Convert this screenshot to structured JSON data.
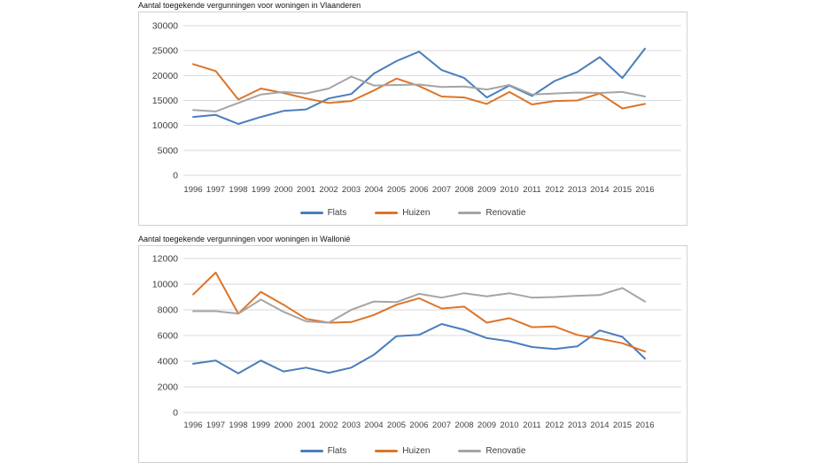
{
  "chart_data": [
    {
      "type": "line",
      "title": "Aantal toegekende vergunningen voor woningen in Vlaanderen",
      "x": [
        1996,
        1997,
        1998,
        1999,
        2000,
        2001,
        2002,
        2003,
        2004,
        2005,
        2006,
        2007,
        2008,
        2009,
        2010,
        2011,
        2012,
        2013,
        2014,
        2015,
        2016
      ],
      "xlabel": "",
      "ylabel": "",
      "ylim": [
        0,
        30000
      ],
      "yticks": [
        0,
        5000,
        10000,
        15000,
        20000,
        25000,
        30000
      ],
      "grid": true,
      "legend_position": "bottom",
      "series": [
        {
          "name": "Flats",
          "color": "#4a7ebb",
          "values": [
            11700,
            12100,
            10300,
            11700,
            12900,
            13200,
            15400,
            16300,
            20400,
            22900,
            24800,
            21100,
            19500,
            15600,
            18000,
            15900,
            18900,
            20700,
            23700,
            19500,
            25400
          ]
        },
        {
          "name": "Huizen",
          "color": "#dd7428",
          "values": [
            22300,
            20900,
            15200,
            17400,
            16500,
            15400,
            14500,
            14900,
            17000,
            19400,
            17900,
            15800,
            15600,
            14300,
            16700,
            14200,
            14900,
            15000,
            16400,
            13400,
            14300
          ]
        },
        {
          "name": "Renovatie",
          "color": "#a5a5a5",
          "values": [
            13100,
            12800,
            14500,
            16200,
            16700,
            16400,
            17400,
            19800,
            18000,
            18100,
            18200,
            17700,
            17800,
            17200,
            18100,
            16200,
            16400,
            16600,
            16500,
            16700,
            15800
          ]
        }
      ]
    },
    {
      "type": "line",
      "title": "Aantal toegekende vergunningen voor woningen in Wallonië",
      "x": [
        1996,
        1997,
        1998,
        1999,
        2000,
        2001,
        2002,
        2003,
        2004,
        2005,
        2006,
        2007,
        2008,
        2009,
        2010,
        2011,
        2012,
        2013,
        2014,
        2015,
        2016
      ],
      "xlabel": "",
      "ylabel": "",
      "ylim": [
        0,
        12000
      ],
      "yticks": [
        0,
        2000,
        4000,
        6000,
        8000,
        10000,
        12000
      ],
      "grid": true,
      "legend_position": "bottom",
      "series": [
        {
          "name": "Flats",
          "color": "#4a7ebb",
          "values": [
            3800,
            4050,
            3050,
            4050,
            3200,
            3500,
            3100,
            3500,
            4500,
            5950,
            6050,
            6900,
            6450,
            5800,
            5550,
            5100,
            4950,
            5150,
            6400,
            5900,
            4200
          ]
        },
        {
          "name": "Huizen",
          "color": "#dd7428",
          "values": [
            9200,
            10900,
            7700,
            9400,
            8400,
            7300,
            7000,
            7050,
            7600,
            8400,
            8900,
            8100,
            8250,
            7000,
            7350,
            6650,
            6700,
            6050,
            5750,
            5400,
            4750
          ]
        },
        {
          "name": "Renovatie",
          "color": "#a5a5a5",
          "values": [
            7900,
            7900,
            7700,
            8800,
            7850,
            7100,
            7000,
            8000,
            8650,
            8600,
            9250,
            8950,
            9300,
            9050,
            9300,
            8950,
            9000,
            9100,
            9150,
            9700,
            8650
          ]
        }
      ]
    }
  ],
  "styles": {
    "accent_blue": "#4a7ebb",
    "accent_orange": "#dd7428",
    "accent_gray": "#a5a5a5",
    "gridline": "#d9d9d9",
    "panel_border": "#d0d0d0",
    "axis_text": "#3f3f3f",
    "title_text": "#141414",
    "legend_text": "#3d3d3d",
    "background": "#ffffff"
  }
}
